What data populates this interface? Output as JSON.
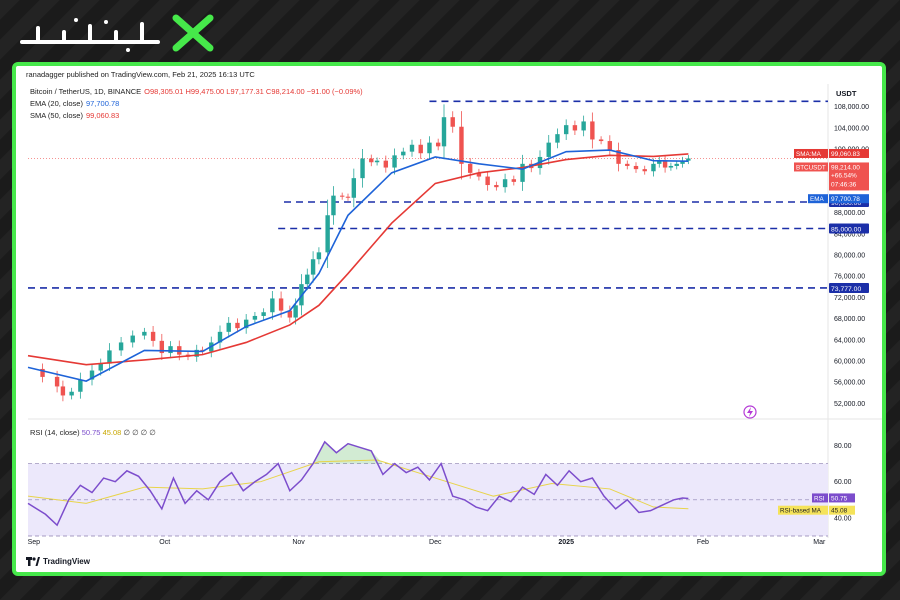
{
  "brand": {
    "logo_name": "brand-logo"
  },
  "header": {
    "attribution": "ranadagger published on TradingView.com, Feb 21, 2025 16:13 UTC"
  },
  "legend": {
    "symbol": "Bitcoin / TetherUS, 1D, BINANCE",
    "ohlc": "O98,305.01 H99,475.00 L97,177.31 C98,214.00 −91.00 (−0.09%)",
    "ema_label": "EMA (20, close)",
    "ema_value": "97,700.78",
    "sma_label": "SMA (50, close)",
    "sma_value": "99,060.83",
    "rsi_label": "RSI (14, close)",
    "rsi_value": "50.75",
    "rsi_ma_value": "45.08",
    "rsi_extra": "∅ ∅ ∅ ∅"
  },
  "footer": {
    "tradingview": "TradingView"
  },
  "colors": {
    "up": "#26a69a",
    "down": "#ef5350",
    "ema": "#1e63d8",
    "sma": "#e53935",
    "rsi": "#7c4dcc",
    "rsi_ma": "#e8d44a",
    "hline": "#1b2fa8",
    "accent": "#46e84a"
  },
  "chart_data": {
    "type": "candlestick",
    "currency_label": "USDT",
    "x_labels": [
      "Sep",
      "Oct",
      "Nov",
      "Dec",
      "2025",
      "Feb",
      "Mar"
    ],
    "y_ticks": [
      "52,000.00",
      "56,000.00",
      "60,000.00",
      "64,000.00",
      "68,000.00",
      "72,000.00",
      "76,000.00",
      "80,000.00",
      "84,000.00",
      "88,000.00",
      "100,000.00",
      "104,000.00",
      "108,000.00"
    ],
    "ylim": [
      50000,
      110000
    ],
    "horizontal_levels": [
      {
        "value": 109000,
        "label": ""
      },
      {
        "value": 90000,
        "label": "90,000.00"
      },
      {
        "value": 85000,
        "label": "85,000.00"
      },
      {
        "value": 73777,
        "label": "73,777.00"
      }
    ],
    "price_tags": {
      "sma_name": "SMA:MA",
      "sma_value": "99,060.83",
      "symbol": "BTCUSDT",
      "price": "98,214.00",
      "change": "+66.54%",
      "countdown": "07:46:36",
      "ema_name": "EMA",
      "ema_value": "97,700.78"
    },
    "series": [
      {
        "name": "Bitcoin / TetherUS",
        "points": [
          [
            0,
            58500
          ],
          [
            5,
            57000
          ],
          [
            10,
            55200
          ],
          [
            12,
            53500
          ],
          [
            15,
            54200
          ],
          [
            18,
            56500
          ],
          [
            22,
            58200
          ],
          [
            25,
            59500
          ],
          [
            28,
            62000
          ],
          [
            32,
            63500
          ],
          [
            36,
            64800
          ],
          [
            40,
            65500
          ],
          [
            43,
            63800
          ],
          [
            46,
            61500
          ],
          [
            49,
            62800
          ],
          [
            52,
            61200
          ],
          [
            55,
            60800
          ],
          [
            58,
            62100
          ],
          [
            60,
            61800
          ],
          [
            63,
            63500
          ],
          [
            66,
            65500
          ],
          [
            69,
            67200
          ],
          [
            72,
            66200
          ],
          [
            75,
            67800
          ],
          [
            78,
            68500
          ],
          [
            81,
            69200
          ],
          [
            84,
            71800
          ],
          [
            87,
            69500
          ],
          [
            90,
            68200
          ],
          [
            92,
            70500
          ],
          [
            94,
            74500
          ],
          [
            96,
            76300
          ],
          [
            98,
            79200
          ],
          [
            100,
            80500
          ],
          [
            103,
            87500
          ],
          [
            105,
            91200
          ],
          [
            108,
            91000
          ],
          [
            110,
            90800
          ],
          [
            112,
            94500
          ],
          [
            115,
            98200
          ],
          [
            118,
            97500
          ],
          [
            120,
            97800
          ],
          [
            123,
            96500
          ],
          [
            126,
            98800
          ],
          [
            129,
            99500
          ],
          [
            132,
            100800
          ],
          [
            135,
            99200
          ],
          [
            138,
            101200
          ],
          [
            141,
            100500
          ],
          [
            143,
            106000
          ],
          [
            146,
            104200
          ],
          [
            149,
            97200
          ],
          [
            152,
            95500
          ],
          [
            155,
            94800
          ],
          [
            158,
            93200
          ],
          [
            161,
            92800
          ],
          [
            164,
            94300
          ],
          [
            167,
            93800
          ],
          [
            170,
            97200
          ],
          [
            173,
            96400
          ],
          [
            176,
            98500
          ],
          [
            179,
            101200
          ],
          [
            182,
            102800
          ],
          [
            185,
            104500
          ],
          [
            188,
            103500
          ],
          [
            191,
            105200
          ],
          [
            194,
            101800
          ],
          [
            197,
            101500
          ],
          [
            200,
            99800
          ],
          [
            203,
            97200
          ],
          [
            206,
            96800
          ],
          [
            209,
            96200
          ],
          [
            212,
            95800
          ],
          [
            215,
            97200
          ],
          [
            217,
            97800
          ],
          [
            219,
            96500
          ],
          [
            221,
            96800
          ],
          [
            223,
            97200
          ],
          [
            225,
            97800
          ],
          [
            227,
            98214
          ]
        ]
      },
      {
        "name": "EMA (20, close)",
        "points": [
          [
            0,
            58800
          ],
          [
            20,
            56200
          ],
          [
            40,
            62000
          ],
          [
            60,
            61800
          ],
          [
            75,
            66500
          ],
          [
            90,
            69500
          ],
          [
            100,
            76500
          ],
          [
            110,
            87500
          ],
          [
            125,
            95500
          ],
          [
            140,
            98500
          ],
          [
            155,
            97200
          ],
          [
            170,
            96200
          ],
          [
            185,
            99500
          ],
          [
            200,
            99800
          ],
          [
            215,
            97800
          ],
          [
            227,
            97700
          ]
        ]
      },
      {
        "name": "SMA (50, close)",
        "points": [
          [
            0,
            61000
          ],
          [
            20,
            59300
          ],
          [
            40,
            60200
          ],
          [
            60,
            61200
          ],
          [
            75,
            63500
          ],
          [
            90,
            66800
          ],
          [
            100,
            70500
          ],
          [
            110,
            76500
          ],
          [
            125,
            86000
          ],
          [
            140,
            93500
          ],
          [
            155,
            95500
          ],
          [
            170,
            96500
          ],
          [
            185,
            98000
          ],
          [
            200,
            98800
          ],
          [
            215,
            98600
          ],
          [
            227,
            99060
          ]
        ]
      },
      {
        "name": "RSI (14, close)",
        "y_ticks": [
          "40.00",
          "60.00",
          "80.00"
        ],
        "points": [
          [
            0,
            48
          ],
          [
            6,
            42
          ],
          [
            10,
            36
          ],
          [
            14,
            50
          ],
          [
            18,
            58
          ],
          [
            22,
            54
          ],
          [
            26,
            62
          ],
          [
            30,
            60
          ],
          [
            34,
            66
          ],
          [
            38,
            63
          ],
          [
            42,
            55
          ],
          [
            46,
            45
          ],
          [
            50,
            62
          ],
          [
            54,
            48
          ],
          [
            58,
            55
          ],
          [
            62,
            50
          ],
          [
            66,
            60
          ],
          [
            70,
            65
          ],
          [
            74,
            55
          ],
          [
            78,
            60
          ],
          [
            82,
            64
          ],
          [
            86,
            70
          ],
          [
            90,
            55
          ],
          [
            94,
            61
          ],
          [
            98,
            70
          ],
          [
            102,
            82
          ],
          [
            106,
            76
          ],
          [
            110,
            81
          ],
          [
            114,
            79
          ],
          [
            118,
            77
          ],
          [
            122,
            64
          ],
          [
            126,
            70
          ],
          [
            130,
            65
          ],
          [
            134,
            68
          ],
          [
            138,
            61
          ],
          [
            142,
            70
          ],
          [
            146,
            52
          ],
          [
            150,
            50
          ],
          [
            154,
            46
          ],
          [
            158,
            44
          ],
          [
            162,
            52
          ],
          [
            166,
            49
          ],
          [
            170,
            57
          ],
          [
            174,
            53
          ],
          [
            178,
            64
          ],
          [
            182,
            58
          ],
          [
            186,
            66
          ],
          [
            190,
            60
          ],
          [
            194,
            62
          ],
          [
            198,
            52
          ],
          [
            202,
            45
          ],
          [
            206,
            50
          ],
          [
            210,
            43
          ],
          [
            214,
            44
          ],
          [
            218,
            47
          ],
          [
            222,
            50
          ],
          [
            225,
            51
          ],
          [
            227,
            50.75
          ]
        ]
      },
      {
        "name": "RSI-based MA",
        "points": [
          [
            0,
            52
          ],
          [
            20,
            48
          ],
          [
            40,
            57
          ],
          [
            60,
            56
          ],
          [
            80,
            60
          ],
          [
            100,
            71
          ],
          [
            120,
            72
          ],
          [
            140,
            62
          ],
          [
            160,
            52
          ],
          [
            180,
            59
          ],
          [
            200,
            56
          ],
          [
            215,
            46
          ],
          [
            227,
            45.08
          ]
        ]
      }
    ],
    "rsi_tags": {
      "rsi_name": "RSI",
      "rsi_value": "50.75",
      "ma_name": "RSI-based MA",
      "ma_value": "45.08"
    }
  }
}
